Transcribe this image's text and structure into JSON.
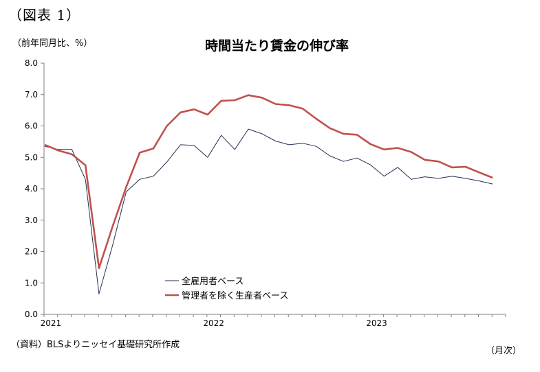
{
  "header": {
    "figure_label": "（図表 1）",
    "unit_label": "（前年同月比、%）",
    "title": "時間当たり賃金の伸び率"
  },
  "footer": {
    "source": "（資料）BLSよりニッセイ基礎研究所作成",
    "x_unit": "（月次）"
  },
  "chart_data": {
    "type": "line",
    "title": "時間当たり賃金の伸び率",
    "ylabel": "（前年同月比、%）",
    "xlabel": "（月次）",
    "ylim": [
      0,
      8
    ],
    "yticks": [
      "0.0",
      "1.0",
      "2.0",
      "3.0",
      "4.0",
      "5.0",
      "6.0",
      "7.0",
      "8.0"
    ],
    "x": [
      "2021-01",
      "2021-02",
      "2021-03",
      "2021-04",
      "2021-05",
      "2021-06",
      "2021-07",
      "2021-08",
      "2021-09",
      "2021-10",
      "2021-11",
      "2021-12",
      "2022-01",
      "2022-02",
      "2022-03",
      "2022-04",
      "2022-05",
      "2022-06",
      "2022-07",
      "2022-08",
      "2022-09",
      "2022-10",
      "2022-11",
      "2022-12",
      "2023-01",
      "2023-02",
      "2023-03",
      "2023-04",
      "2023-05",
      "2023-06",
      "2023-07",
      "2023-08",
      "2023-09",
      "2023-10"
    ],
    "xtick_labels": [
      {
        "x": "2021-01",
        "label": "2021"
      },
      {
        "x": "2022-01",
        "label": "2022"
      },
      {
        "x": "2023-01",
        "label": "2023"
      }
    ],
    "grid": false,
    "legend_position": "bottom-center",
    "series": [
      {
        "name": "全雇用者ベース",
        "color": "#1f3050",
        "values": [
          5.35,
          5.25,
          5.25,
          4.3,
          0.65,
          2.2,
          3.9,
          4.3,
          4.4,
          4.85,
          5.4,
          5.38,
          5.0,
          5.7,
          5.25,
          5.9,
          5.75,
          5.52,
          5.4,
          5.45,
          5.35,
          5.05,
          4.87,
          4.98,
          4.76,
          4.4,
          4.68,
          4.3,
          4.38,
          4.33,
          4.4,
          4.33,
          4.25,
          4.15
        ]
      },
      {
        "name": "管理者を除く生産者ベース",
        "color": "#c0504d",
        "values": [
          5.4,
          5.22,
          5.1,
          4.75,
          1.47,
          2.8,
          4.05,
          5.15,
          5.28,
          6.0,
          6.43,
          6.53,
          6.36,
          6.8,
          6.82,
          6.98,
          6.9,
          6.7,
          6.66,
          6.55,
          6.23,
          5.93,
          5.75,
          5.72,
          5.42,
          5.25,
          5.3,
          5.17,
          4.92,
          4.87,
          4.68,
          4.7,
          4.52,
          4.35
        ]
      }
    ]
  }
}
